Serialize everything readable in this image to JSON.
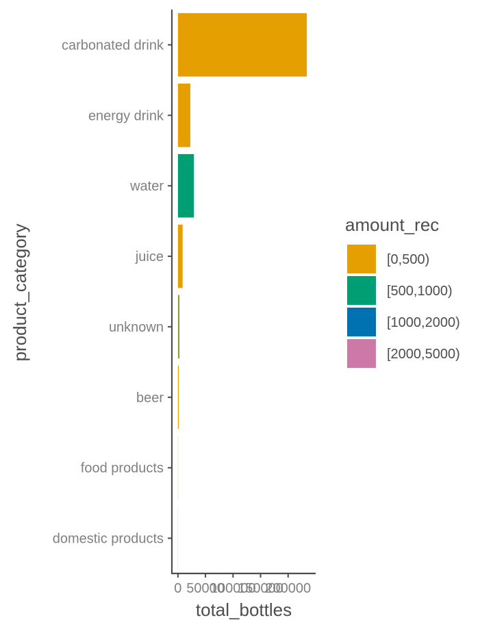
{
  "chart_data": {
    "type": "bar",
    "orientation": "horizontal",
    "stacked": true,
    "xlabel": "total_bottles",
    "ylabel": "product_category",
    "x_ticks": [
      0,
      50000,
      100000,
      150000,
      200000
    ],
    "x_tick_labels": [
      "0",
      "50000",
      "100000",
      "150000",
      "200000"
    ],
    "xlim": [
      -11000,
      250000
    ],
    "categories": [
      "carbonated drink",
      "energy drink",
      "water",
      "juice",
      "unknown",
      "beer",
      "food products",
      "domestic products"
    ],
    "series": [
      {
        "name": "[0,500)",
        "color": "#E69F00",
        "values": [
          234000,
          22500,
          0,
          8500,
          1000,
          1500,
          300,
          200
        ]
      },
      {
        "name": "[500,1000)",
        "color": "#009E73",
        "values": [
          0,
          0,
          29000,
          0,
          1500,
          0,
          0,
          0
        ]
      },
      {
        "name": "[1000,2000)",
        "color": "#0072B2",
        "values": [
          0,
          0,
          0,
          0,
          0,
          0,
          0,
          0
        ]
      },
      {
        "name": "[2000,5000)",
        "color": "#CC79A7",
        "values": [
          0,
          0,
          0,
          0,
          0,
          0,
          0,
          0
        ]
      }
    ],
    "legend": {
      "title": "amount_rec",
      "position": "right"
    }
  }
}
